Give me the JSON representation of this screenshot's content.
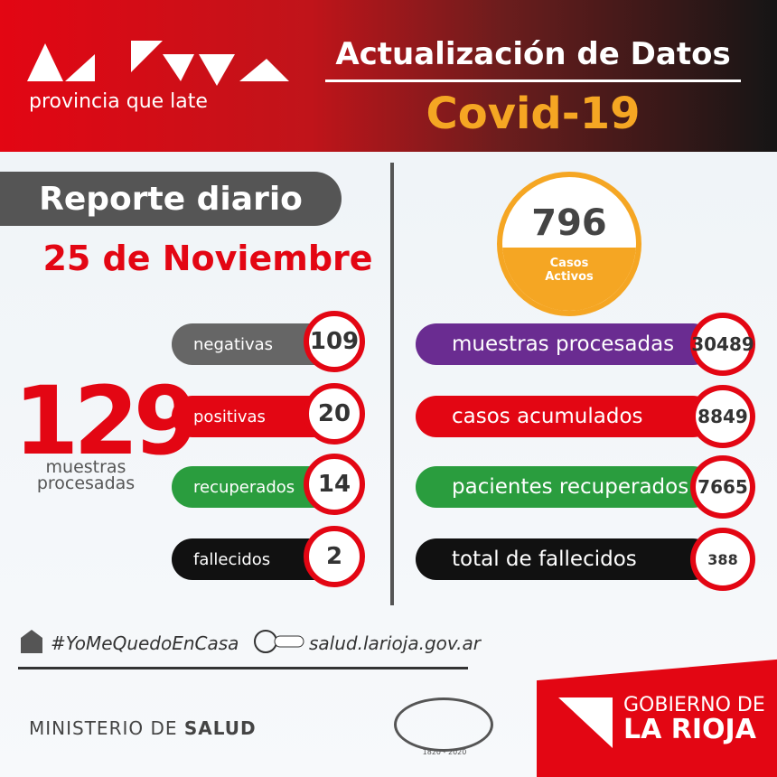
{
  "header": {
    "tagline": "provincia que late",
    "title": "Actualización de Datos",
    "subtitle": "Covid-19"
  },
  "daily": {
    "label": "Reporte diario",
    "date": "25 de Noviembre",
    "total": "129",
    "total_label": "muestras procesadas",
    "rows": [
      {
        "label": "negativas",
        "value": "109"
      },
      {
        "label": "positivas",
        "value": "20"
      },
      {
        "label": "recuperados",
        "value": "14"
      },
      {
        "label": "fallecidos",
        "value": "2"
      }
    ]
  },
  "active": {
    "value": "796",
    "label": "Casos Activos"
  },
  "totals": [
    {
      "label": "muestras procesadas",
      "value": "30489"
    },
    {
      "label": "casos acumulados",
      "value": "8849"
    },
    {
      "label": "pacientes recuperados",
      "value": "7665"
    },
    {
      "label": "total de fallecidos",
      "value": "388"
    }
  ],
  "footer": {
    "hashtag": "#YoMeQuedoEnCasa",
    "website": "salud.larioja.gov.ar",
    "ministry": "MINISTERIO DE",
    "ministry_bold": "SALUD",
    "anniversary": "1820 - 2020",
    "gov_line1": "GOBIERNO DE",
    "gov_line2": "LA RIOJA"
  }
}
